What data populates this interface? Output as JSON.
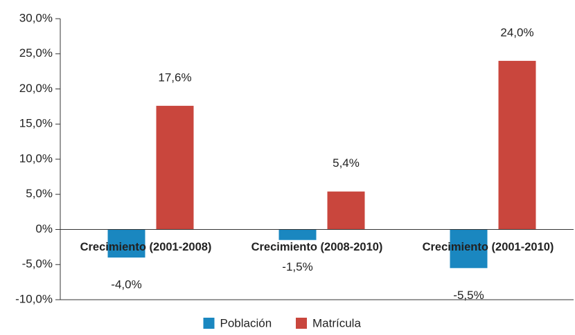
{
  "chart_data": {
    "type": "bar",
    "categories": [
      "Crecimiento (2001-2008)",
      "Crecimiento (2008-2010)",
      "Crecimiento (2001-2010)"
    ],
    "series": [
      {
        "name": "Población",
        "color": "#1a87c0",
        "values": [
          -4.0,
          -1.5,
          -5.5
        ],
        "value_labels": [
          "-4,0%",
          "-1,5%",
          "-5,5%"
        ]
      },
      {
        "name": "Matrícula",
        "color": "#c9463d",
        "values": [
          17.6,
          5.4,
          24.0
        ],
        "value_labels": [
          "17,6%",
          "5,4%",
          "24,0%"
        ]
      }
    ],
    "ylim": [
      -10,
      30
    ],
    "yticks": [
      {
        "value": -10,
        "label": "-10,0%"
      },
      {
        "value": -5,
        "label": "-5,0%"
      },
      {
        "value": 0,
        "label": "0%"
      },
      {
        "value": 5,
        "label": "5,0%"
      },
      {
        "value": 10,
        "label": "10,0%"
      },
      {
        "value": 15,
        "label": "15,0%"
      },
      {
        "value": 20,
        "label": "20,0%"
      },
      {
        "value": 25,
        "label": "25,0%"
      },
      {
        "value": 30,
        "label": "30,0%"
      }
    ],
    "legend": "bottom"
  }
}
